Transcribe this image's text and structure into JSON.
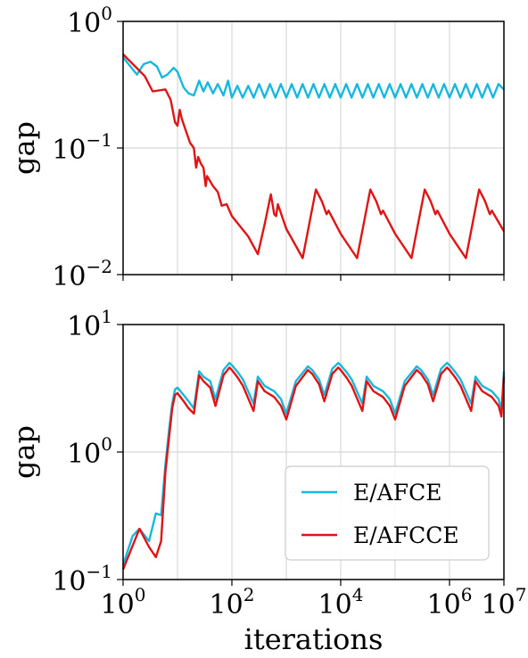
{
  "chart_data": [
    {
      "type": "line",
      "title": "",
      "xlabel": "",
      "ylabel": "gap",
      "xscale": "log",
      "yscale": "log",
      "xlim": [
        1,
        10000000
      ],
      "ylim": [
        0.01,
        1
      ],
      "grid": true,
      "x_ticks": [
        {
          "base": "10",
          "exp": "0"
        },
        {
          "base": "10",
          "exp": "2"
        },
        {
          "base": "10",
          "exp": "4"
        },
        {
          "base": "10",
          "exp": "6"
        },
        {
          "base": "10",
          "exp": "7"
        }
      ],
      "y_ticks": [
        {
          "base": "10",
          "exp": "0"
        },
        {
          "base": "10",
          "exp": "−1"
        },
        {
          "base": "10",
          "exp": "−2"
        }
      ],
      "series": [
        {
          "name": "E/AFCE",
          "color": "#17b8e0",
          "points": [
            [
              1,
              0.52
            ],
            [
              1.8,
              0.38
            ],
            [
              2.4,
              0.46
            ],
            [
              3.2,
              0.48
            ],
            [
              4.2,
              0.44
            ],
            [
              5.2,
              0.36
            ],
            [
              6.5,
              0.38
            ],
            [
              8.5,
              0.43
            ],
            [
              10,
              0.4
            ],
            [
              13,
              0.3
            ],
            [
              16,
              0.27
            ],
            [
              20,
              0.26
            ],
            [
              25,
              0.34
            ],
            [
              30,
              0.28
            ],
            [
              36,
              0.33
            ],
            [
              45,
              0.27
            ],
            [
              55,
              0.32
            ],
            [
              70,
              0.26
            ],
            [
              85,
              0.34
            ],
            [
              100,
              0.25
            ],
            [
              126,
              0.31
            ],
            [
              158,
              0.25
            ],
            [
              200,
              0.31
            ],
            [
              251,
              0.25
            ],
            [
              316,
              0.32
            ],
            [
              398,
              0.25
            ],
            [
              501,
              0.32
            ],
            [
              631,
              0.25
            ],
            [
              794,
              0.32
            ],
            [
              1000,
              0.25
            ],
            [
              1259,
              0.32
            ],
            [
              1585,
              0.25
            ],
            [
              1995,
              0.32
            ],
            [
              2512,
              0.25
            ],
            [
              3162,
              0.32
            ],
            [
              3981,
              0.25
            ],
            [
              5012,
              0.32
            ],
            [
              6310,
              0.25
            ],
            [
              7943,
              0.32
            ],
            [
              10000,
              0.25
            ],
            [
              12589,
              0.32
            ],
            [
              15849,
              0.25
            ],
            [
              19953,
              0.32
            ],
            [
              25119,
              0.25
            ],
            [
              31623,
              0.32
            ],
            [
              39811,
              0.25
            ],
            [
              50119,
              0.32
            ],
            [
              63096,
              0.25
            ],
            [
              79433,
              0.32
            ],
            [
              100000,
              0.25
            ],
            [
              125893,
              0.32
            ],
            [
              158489,
              0.25
            ],
            [
              199526,
              0.32
            ],
            [
              251189,
              0.25
            ],
            [
              316228,
              0.32
            ],
            [
              398107,
              0.25
            ],
            [
              501187,
              0.32
            ],
            [
              630957,
              0.25
            ],
            [
              794328,
              0.32
            ],
            [
              1000000,
              0.25
            ],
            [
              1258925,
              0.32
            ],
            [
              1584893,
              0.25
            ],
            [
              1995262,
              0.32
            ],
            [
              2511886,
              0.25
            ],
            [
              3162278,
              0.32
            ],
            [
              3981072,
              0.25
            ],
            [
              5011872,
              0.32
            ],
            [
              6309573,
              0.25
            ],
            [
              7943282,
              0.32
            ],
            [
              10000000,
              0.29
            ]
          ]
        },
        {
          "name": "E/AFCCE",
          "color": "#e01414",
          "points": [
            [
              1,
              0.55
            ],
            [
              2.5,
              0.37
            ],
            [
              3.5,
              0.28
            ],
            [
              6,
              0.29
            ],
            [
              7.5,
              0.24
            ],
            [
              9,
              0.16
            ],
            [
              10,
              0.15
            ],
            [
              11,
              0.2
            ],
            [
              12,
              0.17
            ],
            [
              14,
              0.14
            ],
            [
              17,
              0.11
            ],
            [
              20,
              0.1
            ],
            [
              22,
              0.07
            ],
            [
              24,
              0.085
            ],
            [
              27,
              0.075
            ],
            [
              30,
              0.07
            ],
            [
              33,
              0.05
            ],
            [
              35,
              0.06
            ],
            [
              45,
              0.05
            ],
            [
              55,
              0.045
            ],
            [
              65,
              0.035
            ],
            [
              80,
              0.036
            ],
            [
              100,
              0.029
            ],
            [
              200,
              0.02
            ],
            [
              300,
              0.0145
            ],
            [
              400,
              0.025
            ],
            [
              520,
              0.043
            ],
            [
              600,
              0.03
            ],
            [
              650,
              0.029
            ],
            [
              700,
              0.036
            ],
            [
              1000,
              0.023
            ],
            [
              2000,
              0.0135
            ],
            [
              3500,
              0.047
            ],
            [
              4500,
              0.038
            ],
            [
              5500,
              0.03
            ],
            [
              6000,
              0.032
            ],
            [
              10000,
              0.021
            ],
            [
              20000,
              0.0135
            ],
            [
              35000,
              0.047
            ],
            [
              45000,
              0.038
            ],
            [
              55000,
              0.03
            ],
            [
              60000,
              0.032
            ],
            [
              100000,
              0.021
            ],
            [
              200000,
              0.0135
            ],
            [
              350000,
              0.047
            ],
            [
              450000,
              0.038
            ],
            [
              550000,
              0.03
            ],
            [
              600000,
              0.032
            ],
            [
              1000000,
              0.021
            ],
            [
              2000000,
              0.0135
            ],
            [
              3500000,
              0.047
            ],
            [
              4500000,
              0.038
            ],
            [
              5500000,
              0.03
            ],
            [
              6000000,
              0.032
            ],
            [
              10000000,
              0.022
            ]
          ]
        }
      ]
    },
    {
      "type": "line",
      "title": "",
      "xlabel": "iterations",
      "ylabel": "gap",
      "xscale": "log",
      "yscale": "log",
      "xlim": [
        1,
        10000000
      ],
      "ylim": [
        0.1,
        10
      ],
      "grid": true,
      "legend_position": "bottom-right",
      "x_ticks": [
        {
          "base": "10",
          "exp": "0"
        },
        {
          "base": "10",
          "exp": "2"
        },
        {
          "base": "10",
          "exp": "4"
        },
        {
          "base": "10",
          "exp": "6"
        },
        {
          "base": "10",
          "exp": "7"
        }
      ],
      "y_ticks": [
        {
          "base": "10",
          "exp": "1"
        },
        {
          "base": "10",
          "exp": "0"
        },
        {
          "base": "10",
          "exp": "−1"
        }
      ],
      "series": [
        {
          "name": "E/AFCE",
          "color": "#17b8e0",
          "points": [
            [
              1,
              0.13
            ],
            [
              1.5,
              0.22
            ],
            [
              2,
              0.25
            ],
            [
              3,
              0.2
            ],
            [
              4,
              0.33
            ],
            [
              5,
              0.32
            ],
            [
              6,
              0.8
            ],
            [
              7,
              1.5
            ],
            [
              8,
              2.4
            ],
            [
              9,
              3.1
            ],
            [
              10,
              3.2
            ],
            [
              13,
              2.8
            ],
            [
              16,
              2.5
            ],
            [
              20,
              2.2
            ],
            [
              25,
              4.3
            ],
            [
              30,
              3.9
            ],
            [
              40,
              3.6
            ],
            [
              50,
              2.6
            ],
            [
              70,
              4.4
            ],
            [
              90,
              5.0
            ],
            [
              100,
              4.8
            ],
            [
              130,
              4.2
            ],
            [
              160,
              3.7
            ],
            [
              250,
              2.4
            ],
            [
              300,
              3.9
            ],
            [
              400,
              3.3
            ],
            [
              600,
              3.0
            ],
            [
              800,
              2.6
            ],
            [
              1000,
              2.0
            ],
            [
              1500,
              3.6
            ],
            [
              2500,
              4.7
            ],
            [
              3000,
              4.4
            ],
            [
              4000,
              3.7
            ],
            [
              5000,
              2.8
            ],
            [
              7000,
              4.5
            ],
            [
              9000,
              5.0
            ],
            [
              10000,
              4.8
            ],
            [
              13000,
              4.2
            ],
            [
              16000,
              3.7
            ],
            [
              25000,
              2.4
            ],
            [
              30000,
              3.9
            ],
            [
              40000,
              3.3
            ],
            [
              60000,
              3.0
            ],
            [
              80000,
              2.6
            ],
            [
              100000,
              2.0
            ],
            [
              150000,
              3.6
            ],
            [
              250000,
              4.7
            ],
            [
              300000,
              4.4
            ],
            [
              400000,
              3.7
            ],
            [
              500000,
              2.8
            ],
            [
              700000,
              4.5
            ],
            [
              900000,
              5.0
            ],
            [
              1000000,
              4.8
            ],
            [
              1300000,
              4.2
            ],
            [
              1600000,
              3.7
            ],
            [
              2500000,
              2.4
            ],
            [
              3000000,
              3.9
            ],
            [
              4000000,
              3.3
            ],
            [
              6000000,
              3.0
            ],
            [
              8000000,
              2.6
            ],
            [
              9000000,
              2.1
            ],
            [
              10000000,
              4.3
            ]
          ]
        },
        {
          "name": "E/AFCCE",
          "color": "#e01414",
          "points": [
            [
              1,
              0.12
            ],
            [
              2,
              0.25
            ],
            [
              3,
              0.18
            ],
            [
              4,
              0.15
            ],
            [
              5,
              0.2
            ],
            [
              6,
              0.7
            ],
            [
              7,
              1.3
            ],
            [
              8,
              2.2
            ],
            [
              9,
              2.8
            ],
            [
              10,
              2.9
            ],
            [
              13,
              2.5
            ],
            [
              16,
              2.2
            ],
            [
              20,
              2.0
            ],
            [
              25,
              4.0
            ],
            [
              30,
              3.6
            ],
            [
              40,
              3.2
            ],
            [
              50,
              2.3
            ],
            [
              70,
              4.0
            ],
            [
              90,
              4.6
            ],
            [
              100,
              4.4
            ],
            [
              130,
              3.8
            ],
            [
              160,
              3.3
            ],
            [
              250,
              2.1
            ],
            [
              300,
              3.6
            ],
            [
              400,
              3.0
            ],
            [
              600,
              2.7
            ],
            [
              800,
              2.3
            ],
            [
              1000,
              1.8
            ],
            [
              1500,
              3.3
            ],
            [
              2500,
              4.4
            ],
            [
              3000,
              4.1
            ],
            [
              4000,
              3.4
            ],
            [
              5000,
              2.5
            ],
            [
              7000,
              4.1
            ],
            [
              9000,
              4.6
            ],
            [
              10000,
              4.4
            ],
            [
              13000,
              3.8
            ],
            [
              16000,
              3.3
            ],
            [
              25000,
              2.1
            ],
            [
              30000,
              3.6
            ],
            [
              40000,
              3.0
            ],
            [
              60000,
              2.7
            ],
            [
              80000,
              2.3
            ],
            [
              100000,
              1.8
            ],
            [
              150000,
              3.3
            ],
            [
              250000,
              4.4
            ],
            [
              300000,
              4.1
            ],
            [
              400000,
              3.4
            ],
            [
              500000,
              2.5
            ],
            [
              700000,
              4.1
            ],
            [
              900000,
              4.6
            ],
            [
              1000000,
              4.4
            ],
            [
              1300000,
              3.8
            ],
            [
              1600000,
              3.3
            ],
            [
              2500000,
              2.1
            ],
            [
              3000000,
              3.6
            ],
            [
              4000000,
              3.0
            ],
            [
              6000000,
              2.7
            ],
            [
              8000000,
              2.3
            ],
            [
              9000000,
              1.9
            ],
            [
              10000000,
              3.9
            ]
          ]
        }
      ]
    }
  ]
}
